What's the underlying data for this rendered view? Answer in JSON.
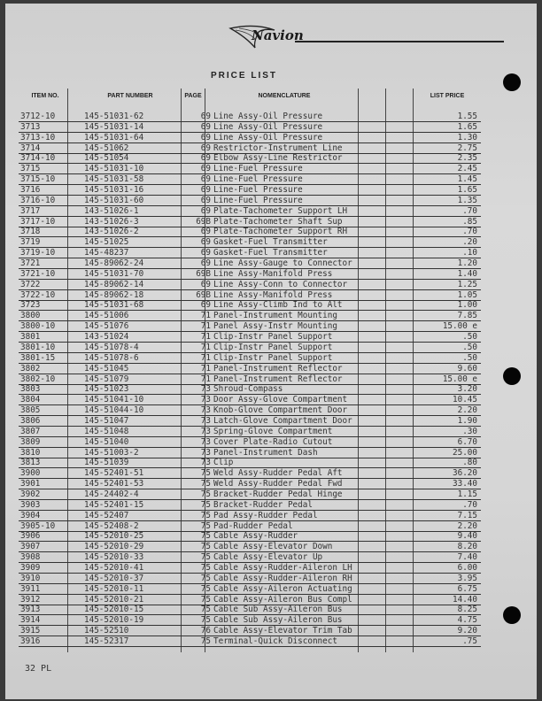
{
  "header": {
    "brand": "Navion",
    "title": "PRICE LIST"
  },
  "columns": {
    "item_no": "ITEM NO.",
    "part_number": "PART NUMBER",
    "page": "PAGE",
    "nomenclature": "NOMENCLATURE",
    "list_price": "LIST PRICE"
  },
  "rows": [
    {
      "item": "3712-10",
      "part": "145-51031-62",
      "page": "69",
      "nom": "Line Assy-Oil Pressure",
      "price": "1.55"
    },
    {
      "item": "3713",
      "part": "145-51031-14",
      "page": "69",
      "nom": "Line Assy-Oil Pressure",
      "price": "1.65"
    },
    {
      "item": "3713-10",
      "part": "145-51031-64",
      "page": "69",
      "nom": "Line Assy-Oil Pressure",
      "price": "1.30"
    },
    {
      "item": "3714",
      "part": "145-51062",
      "page": "69",
      "nom": "Restrictor-Instrument Line",
      "price": "2.75"
    },
    {
      "item": "3714-10",
      "part": "145-51054",
      "page": "69",
      "nom": "Elbow Assy-Line Restrictor",
      "price": "2.35"
    },
    {
      "item": "3715",
      "part": "145-51031-10",
      "page": "69",
      "nom": "Line-Fuel Pressure",
      "price": "2.45"
    },
    {
      "item": "3715-10",
      "part": "145-51031-58",
      "page": "69",
      "nom": "Line-Fuel Pressure",
      "price": "1.45"
    },
    {
      "item": "3716",
      "part": "145-51031-16",
      "page": "69",
      "nom": "Line-Fuel Pressure",
      "price": "1.65"
    },
    {
      "item": "3716-10",
      "part": "145-51031-60",
      "page": "69",
      "nom": "Line-Fuel Pressure",
      "price": "1.35"
    },
    {
      "item": "3717",
      "part": "143-51026-1",
      "page": "69",
      "nom": "Plate-Tachometer Support LH",
      "price": ".70"
    },
    {
      "item": "3717-10",
      "part": "143-51026-3",
      "page": "69B",
      "nom": "Plate-Tachometer Shaft Sup",
      "price": ".85"
    },
    {
      "item": "3718",
      "part": "143-51026-2",
      "page": "69",
      "nom": "Plate-Tachometer Support RH",
      "price": ".70"
    },
    {
      "item": "3719",
      "part": "145-51025",
      "page": "69",
      "nom": "Gasket-Fuel Transmitter",
      "price": ".20"
    },
    {
      "item": "3719-10",
      "part": "145-48237",
      "page": "69",
      "nom": "Gasket-Fuel Transmitter",
      "price": ".10"
    },
    {
      "item": "3721",
      "part": "145-89062-24",
      "page": "69",
      "nom": "Line Assy-Gauge to Connector",
      "price": "1.20"
    },
    {
      "item": "3721-10",
      "part": "145-51031-70",
      "page": "69B",
      "nom": "Line Assy-Manifold Press",
      "price": "1.40"
    },
    {
      "item": "3722",
      "part": "145-89062-14",
      "page": "69",
      "nom": "Line Assy-Conn to Connector",
      "price": "1.25"
    },
    {
      "item": "3722-10",
      "part": "145-89062-18",
      "page": "69B",
      "nom": "Line Assy-Manifold Press",
      "price": "1.05"
    },
    {
      "item": "3723",
      "part": "145-51031-68",
      "page": "69",
      "nom": "Line Assy-Climb Ind to Alt",
      "price": "1.00"
    },
    {
      "item": "3800",
      "part": "145-51006",
      "page": "71",
      "nom": "Panel-Instrument Mounting",
      "price": "7.85"
    },
    {
      "item": "3800-10",
      "part": "145-51076",
      "page": "71",
      "nom": "Panel Assy-Instr Mounting",
      "price": "15.00 e"
    },
    {
      "item": "3801",
      "part": "143-51024",
      "page": "71",
      "nom": "Clip-Instr Panel Support",
      "price": ".50"
    },
    {
      "item": "3801-10",
      "part": "145-51078-4",
      "page": "71",
      "nom": "Clip-Instr Panel Support",
      "price": ".50"
    },
    {
      "item": "3801-15",
      "part": "145-51078-6",
      "page": "71",
      "nom": "Clip-Instr Panel Support",
      "price": ".50"
    },
    {
      "item": "3802",
      "part": "145-51045",
      "page": "71",
      "nom": "Panel-Instrument Reflector",
      "price": "9.60"
    },
    {
      "item": "3802-10",
      "part": "145-51079",
      "page": "71",
      "nom": "Panel-Instrument Reflector",
      "price": "15.00 e"
    },
    {
      "item": "3803",
      "part": "145-51023",
      "page": "73",
      "nom": "Shroud-Compass",
      "price": "3.20"
    },
    {
      "item": "3804",
      "part": "145-51041-10",
      "page": "73",
      "nom": "Door Assy-Glove Compartment",
      "price": "10.45"
    },
    {
      "item": "3805",
      "part": "145-51044-10",
      "page": "73",
      "nom": "Knob-Glove Compartment Door",
      "price": "2.20"
    },
    {
      "item": "3806",
      "part": "145-51047",
      "page": "73",
      "nom": "Latch-Glove Compartment Door",
      "price": "1.90"
    },
    {
      "item": "3807",
      "part": "145-51048",
      "page": "73",
      "nom": "Spring-Glove Compartment",
      "price": ".30"
    },
    {
      "item": "3809",
      "part": "145-51040",
      "page": "73",
      "nom": "Cover Plate-Radio Cutout",
      "price": "6.70"
    },
    {
      "item": "3810",
      "part": "145-51003-2",
      "page": "73",
      "nom": "Panel-Instrument Dash",
      "price": "25.00"
    },
    {
      "item": "3813",
      "part": "145-51039",
      "page": "73",
      "nom": "Clip",
      "price": ".80"
    },
    {
      "item": "3900",
      "part": "145-52401-51",
      "page": "75",
      "nom": "Weld Assy-Rudder Pedal Aft",
      "price": "36.20"
    },
    {
      "item": "3901",
      "part": "145-52401-53",
      "page": "75",
      "nom": "Weld Assy-Rudder Pedal Fwd",
      "price": "33.40"
    },
    {
      "item": "3902",
      "part": "145-24402-4",
      "page": "75",
      "nom": "Bracket-Rudder Pedal Hinge",
      "price": "1.15"
    },
    {
      "item": "3903",
      "part": "145-52401-15",
      "page": "75",
      "nom": "Bracket-Rudder Pedal",
      "price": ".70"
    },
    {
      "item": "3904",
      "part": "145-52407",
      "page": "75",
      "nom": "Pad Assy-Rudder Pedal",
      "price": "7.15"
    },
    {
      "item": "3905-10",
      "part": "145-52408-2",
      "page": "75",
      "nom": "Pad-Rudder Pedal",
      "price": "2.20"
    },
    {
      "item": "3906",
      "part": "145-52010-25",
      "page": "75",
      "nom": "Cable Assy-Rudder",
      "price": "9.40"
    },
    {
      "item": "3907",
      "part": "145-52010-29",
      "page": "75",
      "nom": "Cable Assy-Elevator Down",
      "price": "8.20"
    },
    {
      "item": "3908",
      "part": "145-52010-33",
      "page": "75",
      "nom": "Cable Assy-Elevator Up",
      "price": "7.40"
    },
    {
      "item": "3909",
      "part": "145-52010-41",
      "page": "75",
      "nom": "Cable Assy-Rudder-Aileron LH",
      "price": "6.00"
    },
    {
      "item": "3910",
      "part": "145-52010-37",
      "page": "75",
      "nom": "Cable Assy-Rudder-Aileron RH",
      "price": "3.95"
    },
    {
      "item": "3911",
      "part": "145-52010-11",
      "page": "75",
      "nom": "Cable Assy-Aileron Actuating",
      "price": "6.75"
    },
    {
      "item": "3912",
      "part": "145-52010-21",
      "page": "75",
      "nom": "Cable Assy-Aileron Bus Compl",
      "price": "14.40"
    },
    {
      "item": "3913",
      "part": "145-52010-15",
      "page": "75",
      "nom": "Cable Sub Assy-Aileron Bus",
      "price": "8.25"
    },
    {
      "item": "3914",
      "part": "145-52010-19",
      "page": "75",
      "nom": "Cable Sub Assy-Aileron Bus",
      "price": "4.75"
    },
    {
      "item": "3915",
      "part": "145-52510",
      "page": "76",
      "nom": "Cable Assy-Elevator Trim Tab",
      "price": "9.20"
    },
    {
      "item": "3916",
      "part": "145-52317",
      "page": "75",
      "nom": "Terminal-Quick Disconnect",
      "price": ".75"
    }
  ],
  "footer": {
    "page_label": "32 PL"
  }
}
